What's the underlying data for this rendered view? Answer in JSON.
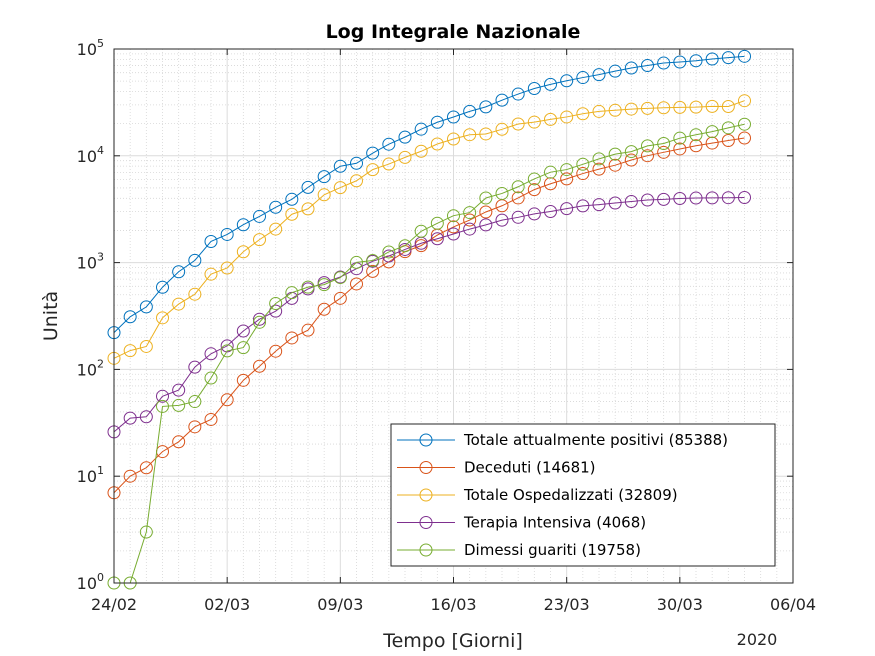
{
  "chart_data": {
    "type": "line",
    "title": "Log Integrale Nazionale",
    "xlabel": "Tempo [Giorni]",
    "ylabel": "Unità",
    "yscale": "log",
    "ylim": [
      1,
      100000
    ],
    "x_range_days": [
      0,
      42
    ],
    "year_label": "2020",
    "x_ticks": [
      {
        "day": 0,
        "label": "24/02"
      },
      {
        "day": 7,
        "label": "02/03"
      },
      {
        "day": 14,
        "label": "09/03"
      },
      {
        "day": 21,
        "label": "16/03"
      },
      {
        "day": 28,
        "label": "23/03"
      },
      {
        "day": 35,
        "label": "30/03"
      },
      {
        "day": 42,
        "label": "06/04"
      }
    ],
    "y_ticks": [
      {
        "value": 1,
        "base": "10",
        "exp": "0"
      },
      {
        "value": 10,
        "base": "10",
        "exp": "1"
      },
      {
        "value": 100,
        "base": "10",
        "exp": "2"
      },
      {
        "value": 1000,
        "base": "10",
        "exp": "3"
      },
      {
        "value": 10000,
        "base": "10",
        "exp": "4"
      },
      {
        "value": 100000,
        "base": "10",
        "exp": "5"
      }
    ],
    "grid": true,
    "legend_position": "bottom-right",
    "series": [
      {
        "name": "Totale attualmente positivi",
        "legend": "Totale attualmente positivi (85388)",
        "color": "#0072BD",
        "values": [
          221,
          311,
          385,
          588,
          821,
          1049,
          1577,
          1835,
          2263,
          2706,
          3296,
          3916,
          5061,
          6387,
          7985,
          8514,
          10590,
          12839,
          14955,
          17750,
          20603,
          23073,
          26062,
          28710,
          33190,
          37860,
          42681,
          46638,
          50418,
          54030,
          57521,
          62013,
          66414,
          70065,
          73880,
          75528,
          77635,
          80572,
          83049,
          85388
        ]
      },
      {
        "name": "Deceduti",
        "legend": "Deceduti (14681)",
        "color": "#D95319",
        "values": [
          7,
          10,
          12,
          17,
          21,
          29,
          34,
          52,
          79,
          107,
          148,
          197,
          233,
          366,
          463,
          631,
          827,
          1016,
          1266,
          1441,
          1809,
          2158,
          2503,
          2978,
          3405,
          4032,
          4825,
          5476,
          6077,
          6820,
          7503,
          8165,
          9134,
          10023,
          10779,
          11591,
          12428,
          13155,
          13915,
          14681
        ]
      },
      {
        "name": "Totale Ospedalizzati",
        "legend": "Totale Ospedalizzati (32809)",
        "color": "#EDB120",
        "values": [
          127,
          150,
          164,
          304,
          409,
          506,
          779,
          890,
          1263,
          1641,
          2060,
          2838,
          3183,
          4314,
          5038,
          5838,
          7426,
          8372,
          9663,
          11025,
          12894,
          14363,
          15757,
          16020,
          17708,
          19846,
          20692,
          21937,
          23112,
          24753,
          26029,
          26676,
          27386,
          27795,
          28192,
          28403,
          28540,
          29010,
          28949,
          32809
        ]
      },
      {
        "name": "Terapia Intensiva",
        "legend": "Terapia Intensiva (4068)",
        "color": "#7E2F8E",
        "values": [
          26,
          35,
          36,
          56,
          64,
          105,
          140,
          166,
          229,
          295,
          351,
          462,
          567,
          650,
          733,
          877,
          1028,
          1153,
          1328,
          1518,
          1672,
          1851,
          2060,
          2257,
          2498,
          2655,
          2857,
          3009,
          3204,
          3396,
          3489,
          3612,
          3732,
          3856,
          3906,
          3981,
          4023,
          4035,
          4053,
          4068
        ]
      },
      {
        "name": "Dimessi guariti",
        "legend": "Dimessi guariti (19758)",
        "color": "#77AC30",
        "values": [
          1,
          1,
          3,
          45,
          46,
          50,
          83,
          149,
          160,
          276,
          414,
          523,
          589,
          622,
          724,
          1004,
          1045,
          1258,
          1439,
          1966,
          2335,
          2749,
          2941,
          4025,
          4440,
          5129,
          6072,
          7024,
          7432,
          8326,
          9362,
          10361,
          10950,
          12384,
          13030,
          14620,
          15729,
          16847,
          18278,
          19758
        ]
      }
    ]
  }
}
